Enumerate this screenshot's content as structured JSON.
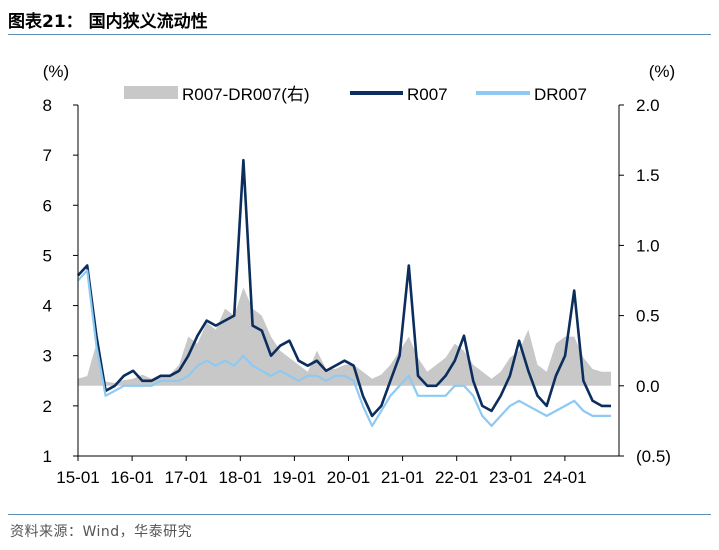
{
  "figure_title": "图表21：  国内狭义流动性",
  "source_note": "资料来源：Wind，华泰研究",
  "chart_data": {
    "type": "line",
    "left_axis_unit": "(%)",
    "right_axis_unit": "(%)",
    "left_ylim": [
      1,
      8
    ],
    "left_ticks": [
      "1",
      "2",
      "3",
      "4",
      "5",
      "6",
      "7",
      "8"
    ],
    "right_ylim": [
      -0.5,
      2.0
    ],
    "right_ticks": [
      "(0.5)",
      "0.0",
      "0.5",
      "1.0",
      "1.5",
      "2.0"
    ],
    "x_ticks": [
      "15-01",
      "16-01",
      "17-01",
      "18-01",
      "19-01",
      "20-01",
      "21-01",
      "22-01",
      "23-01",
      "24-01"
    ],
    "legend_position": "top",
    "grid": false,
    "x": [
      "15-01",
      "15-03",
      "15-05",
      "15-07",
      "15-09",
      "15-11",
      "16-01",
      "16-03",
      "16-05",
      "16-07",
      "16-09",
      "16-11",
      "17-01",
      "17-03",
      "17-05",
      "17-07",
      "17-09",
      "17-11",
      "18-01",
      "18-03",
      "18-05",
      "18-07",
      "18-09",
      "18-11",
      "19-01",
      "19-03",
      "19-05",
      "19-07",
      "19-09",
      "19-11",
      "20-01",
      "20-03",
      "20-05",
      "20-07",
      "20-09",
      "20-11",
      "21-01",
      "21-03",
      "21-05",
      "21-07",
      "21-09",
      "21-11",
      "22-01",
      "22-03",
      "22-05",
      "22-07",
      "22-09",
      "22-11",
      "23-01",
      "23-03",
      "23-05",
      "23-07",
      "23-09",
      "23-11",
      "24-01",
      "24-03",
      "24-05",
      "24-07",
      "24-09"
    ],
    "series": [
      {
        "name": "R007-DR007(右)",
        "axis": "right",
        "render": "area",
        "color": "#c8c8c8",
        "values": [
          0.05,
          0.07,
          0.3,
          0.03,
          0.02,
          0.04,
          0.05,
          0.08,
          0.05,
          0.06,
          0.08,
          0.15,
          0.35,
          0.3,
          0.45,
          0.4,
          0.55,
          0.5,
          0.7,
          0.55,
          0.5,
          0.35,
          0.25,
          0.2,
          0.15,
          0.1,
          0.25,
          0.12,
          0.12,
          0.15,
          0.15,
          0.1,
          0.05,
          0.08,
          0.15,
          0.25,
          0.35,
          0.2,
          0.1,
          0.15,
          0.2,
          0.3,
          0.25,
          0.15,
          0.1,
          0.05,
          0.1,
          0.2,
          0.25,
          0.4,
          0.15,
          0.1,
          0.3,
          0.35,
          0.35,
          0.2,
          0.12,
          0.1,
          0.1
        ]
      },
      {
        "name": "R007",
        "axis": "left",
        "render": "line",
        "color": "#0b2e5e",
        "values": [
          4.6,
          4.8,
          3.4,
          2.3,
          2.4,
          2.6,
          2.7,
          2.5,
          2.5,
          2.6,
          2.6,
          2.7,
          3.0,
          3.4,
          3.7,
          3.6,
          3.7,
          3.8,
          6.9,
          3.6,
          3.5,
          3.0,
          3.2,
          3.3,
          2.9,
          2.8,
          2.9,
          2.7,
          2.8,
          2.9,
          2.8,
          2.2,
          1.8,
          2.0,
          2.5,
          3.0,
          4.8,
          2.6,
          2.4,
          2.4,
          2.6,
          2.9,
          3.4,
          2.5,
          2.0,
          1.9,
          2.2,
          2.6,
          3.3,
          2.7,
          2.2,
          2.0,
          2.6,
          3.0,
          4.3,
          2.5,
          2.1,
          2.0,
          2.0
        ]
      },
      {
        "name": "DR007",
        "axis": "left",
        "render": "line",
        "color": "#8ec9f2",
        "values": [
          4.5,
          4.7,
          3.2,
          2.2,
          2.3,
          2.4,
          2.4,
          2.4,
          2.4,
          2.5,
          2.5,
          2.5,
          2.6,
          2.8,
          2.9,
          2.8,
          2.9,
          2.8,
          3.0,
          2.8,
          2.7,
          2.6,
          2.7,
          2.6,
          2.5,
          2.6,
          2.6,
          2.5,
          2.6,
          2.6,
          2.5,
          2.0,
          1.6,
          1.9,
          2.2,
          2.4,
          2.6,
          2.2,
          2.2,
          2.2,
          2.2,
          2.4,
          2.4,
          2.2,
          1.8,
          1.6,
          1.8,
          2.0,
          2.1,
          2.0,
          1.9,
          1.8,
          1.9,
          2.0,
          2.1,
          1.9,
          1.8,
          1.8,
          1.8
        ]
      }
    ]
  }
}
